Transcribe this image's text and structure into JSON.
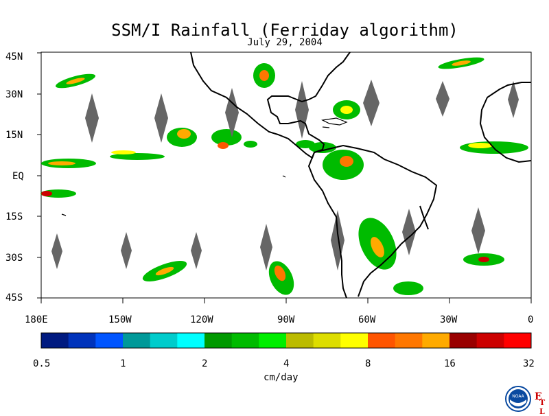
{
  "title": "SSM/I Rainfall (Ferriday algorithm)",
  "date": "July 29, 2004",
  "map": {
    "lat_labels": [
      "45N",
      "30N",
      "15N",
      "EQ",
      "15S",
      "30S",
      "45S"
    ],
    "lon_labels": [
      "180E",
      "150W",
      "120W",
      "90W",
      "60W",
      "30W",
      "0"
    ]
  },
  "colorbar": {
    "colors": [
      "#001a80",
      "#0033bb",
      "#0055ff",
      "#009999",
      "#00cccc",
      "#00ffff",
      "#009900",
      "#00bb00",
      "#00ee00",
      "#bbbb00",
      "#dddd00",
      "#ffff00",
      "#ff5500",
      "#ff7700",
      "#ffaa00",
      "#990000",
      "#cc0000",
      "#ff0000"
    ],
    "tick_labels": [
      "0.5",
      "1",
      "2",
      "4",
      "8",
      "16",
      "32"
    ],
    "unit_label": "cm/day"
  },
  "logo": {
    "noaa_text": "NOAA",
    "etl_e": "E",
    "etl_tl": "T L"
  }
}
